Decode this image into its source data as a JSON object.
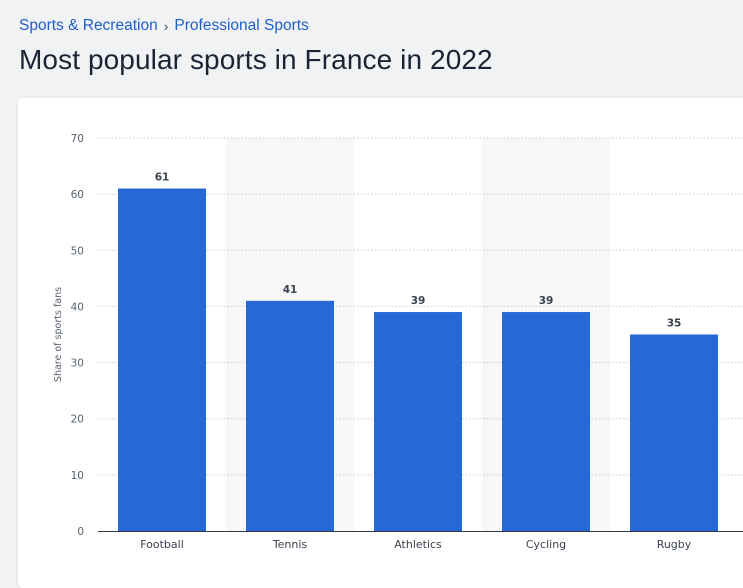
{
  "breadcrumb": {
    "items": [
      "Sports & Recreation",
      "Professional Sports"
    ],
    "separator": "›"
  },
  "page": {
    "title": "Most popular sports in France in 2022"
  },
  "colors": {
    "bar": "#2669d6",
    "link": "#1f5fc9",
    "band": "#f7f7f7"
  },
  "chart_data": {
    "type": "bar",
    "title": "Most popular sports in France in 2022",
    "categories": [
      "Football",
      "Tennis",
      "Athletics",
      "Cycling",
      "Rugby"
    ],
    "values": [
      61,
      41,
      39,
      39,
      35
    ],
    "xlabel": "",
    "ylabel": "Share of sports fans",
    "ylim": [
      0,
      70
    ],
    "yticks": [
      0,
      10,
      20,
      30,
      40,
      50,
      60,
      70
    ],
    "grid": true,
    "legend": "none"
  }
}
